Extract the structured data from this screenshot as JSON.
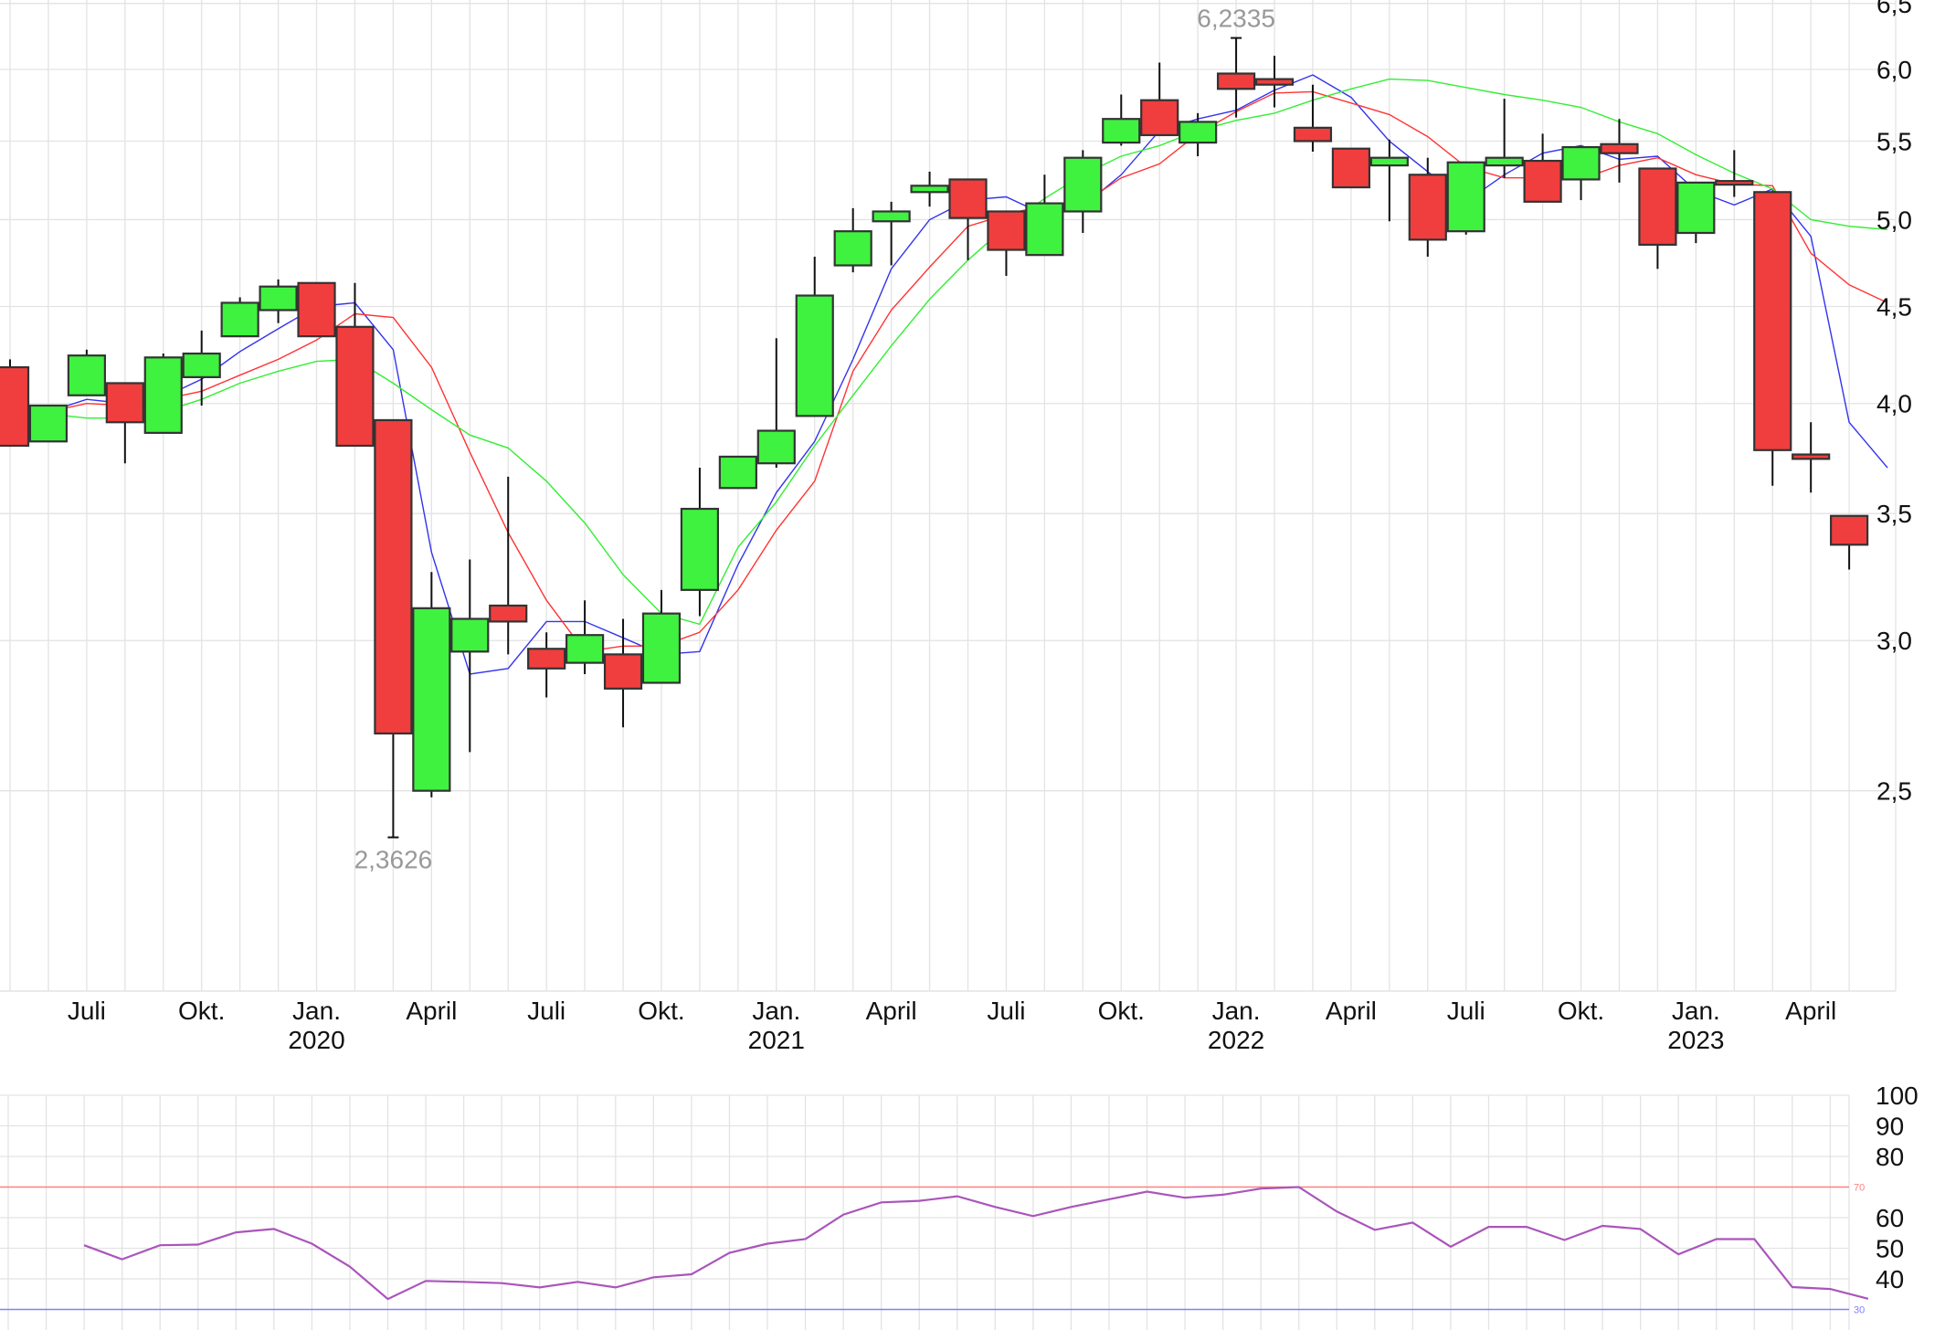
{
  "chart_data": [
    {
      "type": "candlestick",
      "title": "",
      "period": "monthly",
      "yscale": "log",
      "ylim": [
        2.0,
        6.5
      ],
      "yticks": [
        2.5,
        3.0,
        3.5,
        4.0,
        4.5,
        5.0,
        5.5,
        6.0,
        6.5
      ],
      "ytick_labels": [
        "2,5",
        "3,0",
        "3,5",
        "4,0",
        "4,5",
        "5,0",
        "5,5",
        "6,0",
        "6,5"
      ],
      "xtick_labels": [
        {
          "month_index": 2,
          "label": "Juli",
          "year": ""
        },
        {
          "month_index": 5,
          "label": "Okt.",
          "year": ""
        },
        {
          "month_index": 8,
          "label": "Jan.",
          "year": "2020"
        },
        {
          "month_index": 11,
          "label": "April",
          "year": ""
        },
        {
          "month_index": 14,
          "label": "Juli",
          "year": ""
        },
        {
          "month_index": 17,
          "label": "Okt.",
          "year": ""
        },
        {
          "month_index": 20,
          "label": "Jan.",
          "year": "2021"
        },
        {
          "month_index": 23,
          "label": "April",
          "year": ""
        },
        {
          "month_index": 26,
          "label": "Juli",
          "year": ""
        },
        {
          "month_index": 29,
          "label": "Okt.",
          "year": ""
        },
        {
          "month_index": 32,
          "label": "Jan.",
          "year": "2022"
        },
        {
          "month_index": 35,
          "label": "April",
          "year": ""
        },
        {
          "month_index": 38,
          "label": "Juli",
          "year": ""
        },
        {
          "month_index": 41,
          "label": "Okt.",
          "year": ""
        },
        {
          "month_index": 44,
          "label": "Jan.",
          "year": "2023"
        },
        {
          "month_index": 47,
          "label": "April",
          "year": ""
        }
      ],
      "annotations": [
        {
          "label": "6,2335",
          "value": 6.2335,
          "month_index": 32,
          "position": "above"
        },
        {
          "label": "2,3626",
          "value": 2.3626,
          "month_index": 10,
          "position": "below"
        }
      ],
      "colors": {
        "up": "#3ff23f",
        "down": "#f03e3e",
        "outline": "#333333",
        "ma_short": "#3333ee",
        "ma_mid": "#ff3333",
        "ma_long": "#33ee33"
      },
      "candles": [
        {
          "m": "2019-05",
          "o": 4.18,
          "h": 4.22,
          "l": 3.8,
          "c": 3.8
        },
        {
          "m": "2019-06",
          "o": 3.82,
          "h": 3.82,
          "l": 3.82,
          "c": 3.99
        },
        {
          "m": "2019-07",
          "o": 4.04,
          "h": 4.27,
          "l": 4.04,
          "c": 4.24
        },
        {
          "m": "2019-08",
          "o": 4.1,
          "h": 4.1,
          "l": 3.72,
          "c": 3.91
        },
        {
          "m": "2019-09",
          "o": 3.86,
          "h": 4.25,
          "l": 3.86,
          "c": 4.23
        },
        {
          "m": "2019-10",
          "o": 4.13,
          "h": 4.37,
          "l": 3.99,
          "c": 4.25
        },
        {
          "m": "2019-11",
          "o": 4.34,
          "h": 4.55,
          "l": 4.34,
          "c": 4.52
        },
        {
          "m": "2019-12",
          "o": 4.48,
          "h": 4.65,
          "l": 4.41,
          "c": 4.61
        },
        {
          "m": "2020-01",
          "o": 4.63,
          "h": 4.63,
          "l": 4.34,
          "c": 4.34
        },
        {
          "m": "2020-02",
          "o": 4.39,
          "h": 4.63,
          "l": 3.8,
          "c": 3.8
        },
        {
          "m": "2020-03",
          "o": 3.92,
          "h": 3.92,
          "l": 2.3626,
          "c": 2.68
        },
        {
          "m": "2020-04",
          "o": 2.5,
          "h": 3.26,
          "l": 2.48,
          "c": 3.12
        },
        {
          "m": "2020-05",
          "o": 2.96,
          "h": 3.31,
          "l": 2.62,
          "c": 3.08
        },
        {
          "m": "2020-06",
          "o": 3.13,
          "h": 3.66,
          "l": 2.95,
          "c": 3.07
        },
        {
          "m": "2020-07",
          "o": 2.97,
          "h": 3.03,
          "l": 2.8,
          "c": 2.9
        },
        {
          "m": "2020-08",
          "o": 2.92,
          "h": 3.15,
          "l": 2.88,
          "c": 3.02
        },
        {
          "m": "2020-09",
          "o": 2.95,
          "h": 3.08,
          "l": 2.7,
          "c": 2.83
        },
        {
          "m": "2020-10",
          "o": 2.85,
          "h": 3.19,
          "l": 2.85,
          "c": 3.1
        },
        {
          "m": "2020-11",
          "o": 3.19,
          "h": 3.7,
          "l": 3.09,
          "c": 3.52
        },
        {
          "m": "2020-12",
          "o": 3.61,
          "h": 3.75,
          "l": 3.61,
          "c": 3.75
        },
        {
          "m": "2021-01",
          "o": 3.72,
          "h": 4.33,
          "l": 3.7,
          "c": 3.87
        },
        {
          "m": "2021-02",
          "o": 3.94,
          "h": 4.78,
          "l": 3.94,
          "c": 4.56
        },
        {
          "m": "2021-03",
          "o": 4.73,
          "h": 5.07,
          "l": 4.69,
          "c": 4.93
        },
        {
          "m": "2021-04",
          "o": 4.99,
          "h": 5.11,
          "l": 4.73,
          "c": 5.05
        },
        {
          "m": "2021-05",
          "o": 5.17,
          "h": 5.3,
          "l": 5.08,
          "c": 5.21
        },
        {
          "m": "2021-06",
          "o": 5.25,
          "h": 5.25,
          "l": 4.76,
          "c": 5.01
        },
        {
          "m": "2021-07",
          "o": 5.05,
          "h": 5.05,
          "l": 4.67,
          "c": 4.82
        },
        {
          "m": "2021-08",
          "o": 4.79,
          "h": 5.28,
          "l": 4.79,
          "c": 5.1
        },
        {
          "m": "2021-09",
          "o": 5.05,
          "h": 5.44,
          "l": 4.92,
          "c": 5.39
        },
        {
          "m": "2021-10",
          "o": 5.49,
          "h": 5.82,
          "l": 5.47,
          "c": 5.65
        },
        {
          "m": "2021-11",
          "o": 5.78,
          "h": 6.05,
          "l": 5.54,
          "c": 5.54
        },
        {
          "m": "2021-12",
          "o": 5.49,
          "h": 5.69,
          "l": 5.4,
          "c": 5.63
        },
        {
          "m": "2022-01",
          "o": 5.97,
          "h": 6.2335,
          "l": 5.66,
          "c": 5.86
        },
        {
          "m": "2022-02",
          "o": 5.93,
          "h": 6.1,
          "l": 5.73,
          "c": 5.89
        },
        {
          "m": "2022-03",
          "o": 5.59,
          "h": 5.89,
          "l": 5.43,
          "c": 5.5
        },
        {
          "m": "2022-04",
          "o": 5.45,
          "h": 5.45,
          "l": 5.2,
          "c": 5.2
        },
        {
          "m": "2022-05",
          "o": 5.34,
          "h": 5.51,
          "l": 4.99,
          "c": 5.39
        },
        {
          "m": "2022-06",
          "o": 5.28,
          "h": 5.39,
          "l": 4.78,
          "c": 4.88
        },
        {
          "m": "2022-07",
          "o": 4.93,
          "h": 4.93,
          "l": 4.91,
          "c": 5.36
        },
        {
          "m": "2022-08",
          "o": 5.34,
          "h": 5.79,
          "l": 5.26,
          "c": 5.39
        },
        {
          "m": "2022-09",
          "o": 5.37,
          "h": 5.55,
          "l": 5.11,
          "c": 5.11
        },
        {
          "m": "2022-10",
          "o": 5.25,
          "h": 5.46,
          "l": 5.12,
          "c": 5.46
        },
        {
          "m": "2022-11",
          "o": 5.48,
          "h": 5.65,
          "l": 5.23,
          "c": 5.42
        },
        {
          "m": "2022-12",
          "o": 5.32,
          "h": 5.32,
          "l": 4.71,
          "c": 4.85
        },
        {
          "m": "2023-01",
          "o": 4.92,
          "h": 5.23,
          "l": 4.86,
          "c": 5.23
        },
        {
          "m": "2023-02",
          "o": 5.24,
          "h": 5.44,
          "l": 5.14,
          "c": 5.22
        },
        {
          "m": "2023-03",
          "o": 5.17,
          "h": 5.18,
          "l": 3.62,
          "c": 3.78
        },
        {
          "m": "2023-04",
          "o": 3.76,
          "h": 3.91,
          "l": 3.59,
          "c": 3.74
        },
        {
          "m": "2023-05",
          "o": 3.49,
          "h": 3.49,
          "l": 3.27,
          "c": 3.37
        }
      ],
      "series": [
        {
          "name": "MA short",
          "color": "#3333ee",
          "start_index": 1,
          "values": [
            3.96,
            4.02,
            4.0,
            4.03,
            4.12,
            4.26,
            4.38,
            4.5,
            4.52,
            4.27,
            3.34,
            2.88,
            2.9,
            3.07,
            3.07,
            3.01,
            2.95,
            2.96,
            3.29,
            3.59,
            3.82,
            4.22,
            4.71,
            5.0,
            5.12,
            5.14,
            5.03,
            5.08,
            5.28,
            5.57,
            5.65,
            5.71,
            5.85,
            5.96,
            5.8,
            5.5,
            5.3,
            5.11,
            5.28,
            5.42,
            5.47,
            5.38,
            5.4,
            5.18,
            5.09,
            5.19,
            4.9,
            3.91,
            3.7
          ]
        },
        {
          "name": "MA mid",
          "color": "#ff3333",
          "start_index": 1,
          "values": [
            3.96,
            4.0,
            3.99,
            4.02,
            4.06,
            4.14,
            4.22,
            4.32,
            4.46,
            4.44,
            4.18,
            3.77,
            3.42,
            3.15,
            2.96,
            2.98,
            2.98,
            3.03,
            3.19,
            3.43,
            3.64,
            4.16,
            4.48,
            4.72,
            4.96,
            5.03,
            5.09,
            5.1,
            5.26,
            5.35,
            5.55,
            5.7,
            5.83,
            5.84,
            5.76,
            5.68,
            5.53,
            5.33,
            5.26,
            5.26,
            5.25,
            5.34,
            5.39,
            5.28,
            5.22,
            5.21,
            4.8,
            4.62,
            4.52
          ]
        },
        {
          "name": "MA long",
          "color": "#33ee33",
          "start_index": 1,
          "values": [
            3.95,
            3.93,
            3.93,
            3.96,
            4.02,
            4.1,
            4.16,
            4.21,
            4.22,
            4.1,
            3.97,
            3.85,
            3.79,
            3.64,
            3.46,
            3.25,
            3.1,
            3.06,
            3.36,
            3.55,
            3.8,
            4.04,
            4.29,
            4.54,
            4.76,
            4.96,
            5.13,
            5.28,
            5.4,
            5.47,
            5.57,
            5.64,
            5.69,
            5.78,
            5.86,
            5.93,
            5.92,
            5.87,
            5.82,
            5.78,
            5.73,
            5.63,
            5.55,
            5.41,
            5.29,
            5.19,
            5.0,
            4.96,
            4.94
          ]
        }
      ]
    },
    {
      "type": "line",
      "title": "RSI",
      "ylim": [
        30,
        100
      ],
      "yticks": [
        30,
        40,
        50,
        60,
        70,
        80,
        90,
        100
      ],
      "ytick_labels": [
        "",
        "40",
        "50",
        "60",
        "",
        "80",
        "90",
        "100"
      ],
      "reference_lines": [
        {
          "value": 70,
          "label": "70",
          "color": "#ff8080"
        },
        {
          "value": 30,
          "label": "30",
          "color": "#8080ff"
        }
      ],
      "series": [
        {
          "name": "RSI",
          "color": "#aa55bb",
          "start_index": 2,
          "values": [
            51,
            46.4,
            51,
            51.2,
            55.2,
            56.3,
            51.5,
            44,
            33.4,
            39.3,
            39,
            38.6,
            37.2,
            39,
            37.2,
            40.5,
            41.5,
            48.5,
            51.5,
            53,
            61,
            65,
            65.5,
            67,
            63.5,
            60.5,
            63.5,
            66,
            68.5,
            66.5,
            67.5,
            69.5,
            70,
            62,
            56,
            58.4,
            50.5,
            57,
            57,
            52.7,
            57.3,
            56.3,
            48,
            53,
            53,
            37.3,
            36.7,
            33.5
          ]
        }
      ]
    }
  ]
}
